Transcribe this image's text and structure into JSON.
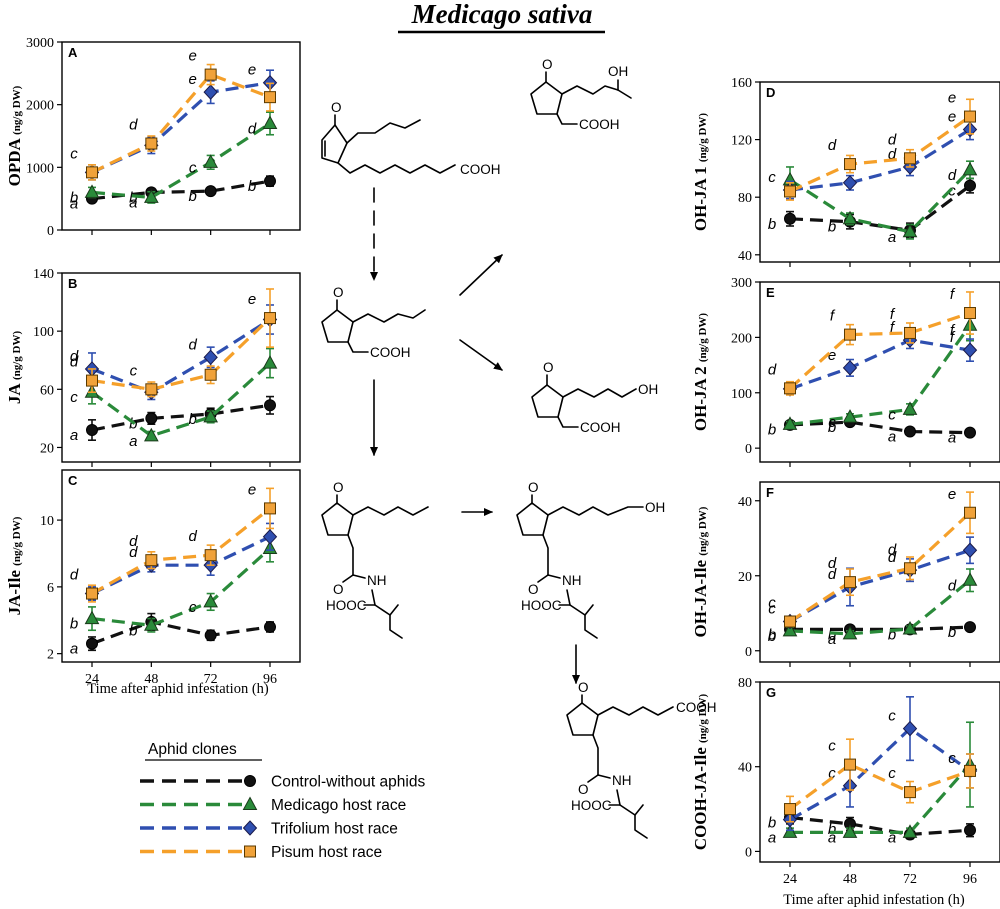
{
  "figure_title": "Medicago sativa",
  "x_axis_label": "Time after aphid infestation (h)",
  "colors": {
    "control": "#111111",
    "medicago": "#2a8a3a",
    "trifolium": "#2f4fb0",
    "pisum": "#f5a02a",
    "pisum_fill": "#f0a23a"
  },
  "legend": {
    "title": "Aphid clones",
    "entries": [
      {
        "key": "control",
        "label": "Control-without aphids",
        "marker": "circle"
      },
      {
        "key": "medicago",
        "label": "Medicago host race",
        "marker": "triangle"
      },
      {
        "key": "trifolium",
        "label": "Trifolium host race",
        "marker": "diamond"
      },
      {
        "key": "pisum",
        "label": "Pisum host race",
        "marker": "square"
      }
    ]
  },
  "chem": {
    "cooh": "COOH",
    "oh": "OH",
    "o": "O",
    "nh": "NH",
    "hooc": "HOOC"
  },
  "chart_data": [
    {
      "panel": "A",
      "type": "line",
      "ylabel": "OPDA",
      "yunit": "(ng/g DW)",
      "x": [
        24,
        48,
        72,
        96
      ],
      "ylim": [
        0,
        3000
      ],
      "yticks": [
        0,
        1000,
        2000,
        3000
      ],
      "series": [
        {
          "name": "Control-without aphids",
          "key": "control",
          "values": [
            500,
            600,
            620,
            780
          ],
          "err": [
            60,
            60,
            40,
            80
          ],
          "letters": [
            "a",
            "b",
            "b",
            "b"
          ]
        },
        {
          "name": "Medicago host race",
          "key": "medicago",
          "values": [
            600,
            520,
            1080,
            1700
          ],
          "err": [
            80,
            90,
            110,
            180
          ],
          "letters": [
            "b",
            "a",
            "c",
            "d"
          ]
        },
        {
          "name": "Trifolium host race",
          "key": "trifolium",
          "values": [
            920,
            1350,
            2200,
            2350
          ],
          "err": [
            120,
            130,
            180,
            200
          ],
          "letters": [
            "",
            "",
            "e",
            "e"
          ]
        },
        {
          "name": "Pisum host race",
          "key": "pisum",
          "values": [
            920,
            1380,
            2480,
            2120
          ],
          "err": [
            120,
            120,
            160,
            220
          ],
          "letters": [
            "c",
            "d",
            "e",
            ""
          ]
        }
      ]
    },
    {
      "panel": "B",
      "type": "line",
      "ylabel": "JA",
      "yunit": "(ng/g DW)",
      "x": [
        24,
        48,
        72,
        96
      ],
      "ylim": [
        10,
        140
      ],
      "yticks": [
        20,
        60,
        100,
        140
      ],
      "series": [
        {
          "name": "Control-without aphids",
          "key": "control",
          "values": [
            32,
            40,
            43,
            49
          ],
          "err": [
            7,
            4,
            4,
            6
          ],
          "letters": [
            "a",
            "b",
            "b",
            ""
          ]
        },
        {
          "name": "Medicago host race",
          "key": "medicago",
          "values": [
            58,
            28,
            41,
            78
          ],
          "err": [
            8,
            3,
            4,
            10
          ],
          "letters": [
            "c",
            "a",
            "",
            ""
          ]
        },
        {
          "name": "Trifolium host race",
          "key": "trifolium",
          "values": [
            74,
            58,
            82,
            108
          ],
          "err": [
            11,
            5,
            7,
            10
          ],
          "letters": [
            "d",
            "",
            "d",
            ""
          ]
        },
        {
          "name": "Pisum host race",
          "key": "pisum",
          "values": [
            66,
            60,
            70,
            109
          ],
          "err": [
            8,
            5,
            6,
            20
          ],
          "letters": [
            "d",
            "c",
            "",
            "e"
          ]
        }
      ]
    },
    {
      "panel": "C",
      "type": "line",
      "ylabel": "JA-Ile",
      "yunit": "(ng/g DW)",
      "x": [
        24,
        48,
        72,
        96
      ],
      "ylim": [
        1.5,
        13
      ],
      "yticks": [
        2,
        6,
        10
      ],
      "series": [
        {
          "name": "Control-without aphids",
          "key": "control",
          "values": [
            2.6,
            3.9,
            3.1,
            3.6
          ],
          "err": [
            0.4,
            0.5,
            0.3,
            0.3
          ],
          "letters": [
            "a",
            "",
            "",
            ""
          ]
        },
        {
          "name": "Medicago host race",
          "key": "medicago",
          "values": [
            4.1,
            3.7,
            5.1,
            8.3
          ],
          "err": [
            0.7,
            0.4,
            0.5,
            0.8
          ],
          "letters": [
            "b",
            "b",
            "c",
            ""
          ]
        },
        {
          "name": "Trifolium host race",
          "key": "trifolium",
          "values": [
            5.6,
            7.3,
            7.3,
            9.0
          ],
          "err": [
            0.4,
            0.4,
            0.6,
            0.8
          ],
          "letters": [
            "",
            "d",
            "",
            ""
          ]
        },
        {
          "name": "Pisum host race",
          "key": "pisum",
          "values": [
            5.6,
            7.6,
            7.9,
            10.7
          ],
          "err": [
            0.5,
            0.5,
            0.6,
            1.2
          ],
          "letters": [
            "d",
            "d",
            "d",
            "e"
          ]
        }
      ]
    },
    {
      "panel": "D",
      "type": "line",
      "ylabel": "OH-JA 1",
      "yunit": "(ng/g DW)",
      "x": [
        24,
        48,
        72,
        96
      ],
      "ylim": [
        35,
        160
      ],
      "yticks": [
        40,
        80,
        120,
        160
      ],
      "series": [
        {
          "name": "Control-without aphids",
          "key": "control",
          "values": [
            65,
            63,
            57,
            88
          ],
          "err": [
            5,
            5,
            5,
            5
          ],
          "letters": [
            "b",
            "b",
            "",
            "c"
          ]
        },
        {
          "name": "Medicago host race",
          "key": "medicago",
          "values": [
            92,
            65,
            56,
            99
          ],
          "err": [
            9,
            4,
            5,
            6
          ],
          "letters": [
            "",
            "",
            "a",
            "d"
          ]
        },
        {
          "name": "Trifolium host race",
          "key": "trifolium",
          "values": [
            85,
            90,
            101,
            127
          ],
          "err": [
            6,
            5,
            6,
            7
          ],
          "letters": [
            "c",
            "",
            "d",
            "e"
          ]
        },
        {
          "name": "Pisum host race",
          "key": "pisum",
          "values": [
            84,
            103,
            107,
            136
          ],
          "err": [
            6,
            6,
            6,
            12
          ],
          "letters": [
            "",
            "d",
            "d",
            "e"
          ]
        }
      ]
    },
    {
      "panel": "E",
      "type": "line",
      "ylabel": "OH-JA 2",
      "yunit": "(ng/g DW)",
      "x": [
        24,
        48,
        72,
        96
      ],
      "ylim": [
        -25,
        300
      ],
      "yticks": [
        0,
        100,
        200,
        300
      ],
      "series": [
        {
          "name": "Control-without aphids",
          "key": "control",
          "values": [
            42,
            47,
            30,
            28
          ],
          "err": [
            4,
            5,
            3,
            3
          ],
          "letters": [
            "",
            "b",
            "a",
            "a"
          ]
        },
        {
          "name": "Medicago host race",
          "key": "medicago",
          "values": [
            43,
            56,
            70,
            222
          ],
          "err": [
            5,
            6,
            10,
            28
          ],
          "letters": [
            "b",
            "c",
            "c",
            "f"
          ]
        },
        {
          "name": "Trifolium host race",
          "key": "trifolium",
          "values": [
            107,
            145,
            195,
            177
          ],
          "err": [
            10,
            15,
            15,
            20
          ],
          "letters": [
            "",
            "e",
            "f",
            "f"
          ]
        },
        {
          "name": "Pisum host race",
          "key": "pisum",
          "values": [
            108,
            205,
            208,
            244
          ],
          "err": [
            12,
            18,
            18,
            38
          ],
          "letters": [
            "d",
            "f",
            "f",
            "f"
          ]
        }
      ]
    },
    {
      "panel": "F",
      "type": "line",
      "ylabel": "OH-JA-Ile",
      "yunit": "(ng/g DW)",
      "x": [
        24,
        48,
        72,
        96
      ],
      "ylim": [
        -3,
        45
      ],
      "yticks": [
        0,
        20,
        40
      ],
      "series": [
        {
          "name": "Control-without aphids",
          "key": "control",
          "values": [
            5.7,
            5.7,
            5.7,
            6.3
          ],
          "err": [
            0.8,
            0.8,
            0.6,
            0.8
          ],
          "letters": [
            "b",
            "b",
            "b",
            "b"
          ]
        },
        {
          "name": "Medicago host race",
          "key": "medicago",
          "values": [
            5.3,
            4.5,
            5.8,
            18.8
          ],
          "err": [
            1.0,
            0.8,
            0.8,
            3.0
          ],
          "letters": [
            "b",
            "a",
            "",
            "d"
          ]
        },
        {
          "name": "Trifolium host race",
          "key": "trifolium",
          "values": [
            7.8,
            17.0,
            21.5,
            26.8
          ],
          "err": [
            1.0,
            5.0,
            3.0,
            3.5
          ],
          "letters": [
            "c",
            "d",
            "d",
            ""
          ]
        },
        {
          "name": "Pisum host race",
          "key": "pisum",
          "values": [
            7.8,
            18.3,
            22.0,
            36.8
          ],
          "err": [
            1.0,
            3.5,
            3.0,
            5.5
          ],
          "letters": [
            "c",
            "d",
            "d",
            "e"
          ]
        }
      ]
    },
    {
      "panel": "G",
      "type": "line",
      "ylabel": "COOH-JA-Ile",
      "yunit": "(ng/g DW)",
      "x": [
        24,
        48,
        72,
        96
      ],
      "ylim": [
        -5,
        80
      ],
      "yticks": [
        0,
        40,
        80
      ],
      "series": [
        {
          "name": "Control-without aphids",
          "key": "control",
          "values": [
            16,
            13,
            8,
            10
          ],
          "err": [
            3,
            3,
            2,
            3
          ],
          "letters": [
            "b",
            "b",
            "",
            ""
          ]
        },
        {
          "name": "Medicago host race",
          "key": "medicago",
          "values": [
            9,
            9,
            9,
            41
          ],
          "err": [
            2,
            2,
            2,
            20
          ],
          "letters": [
            "a",
            "a",
            "a",
            ""
          ]
        },
        {
          "name": "Trifolium host race",
          "key": "trifolium",
          "values": [
            15,
            31,
            58,
            38
          ],
          "err": [
            5,
            10,
            15,
            8
          ],
          "letters": [
            "",
            "c",
            "c",
            "c"
          ]
        },
        {
          "name": "Pisum host race",
          "key": "pisum",
          "values": [
            20,
            41,
            28,
            38
          ],
          "err": [
            6,
            12,
            5,
            8
          ],
          "letters": [
            "",
            "c",
            "c",
            ""
          ]
        }
      ]
    }
  ]
}
